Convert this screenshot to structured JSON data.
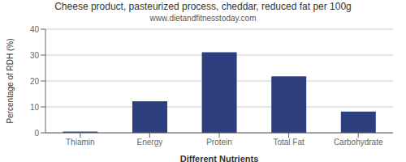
{
  "chart_data": {
    "type": "bar",
    "title": "Cheese product, pasteurized process, cheddar, reduced fat per 100g",
    "subtitle": "www.dietandfitnesstoday.com",
    "xlabel": "Different Nutrients",
    "ylabel": "Percentage of RDH (%)",
    "categories": [
      "Thiamin",
      "Energy",
      "Protein",
      "Total Fat",
      "Carbohydrate"
    ],
    "values": [
      0.5,
      12.2,
      31.1,
      21.8,
      8.2
    ],
    "color": "#2d3f7f",
    "ylim": [
      0,
      40
    ],
    "yticks": [
      0,
      10,
      20,
      30,
      40
    ],
    "grid": true
  }
}
